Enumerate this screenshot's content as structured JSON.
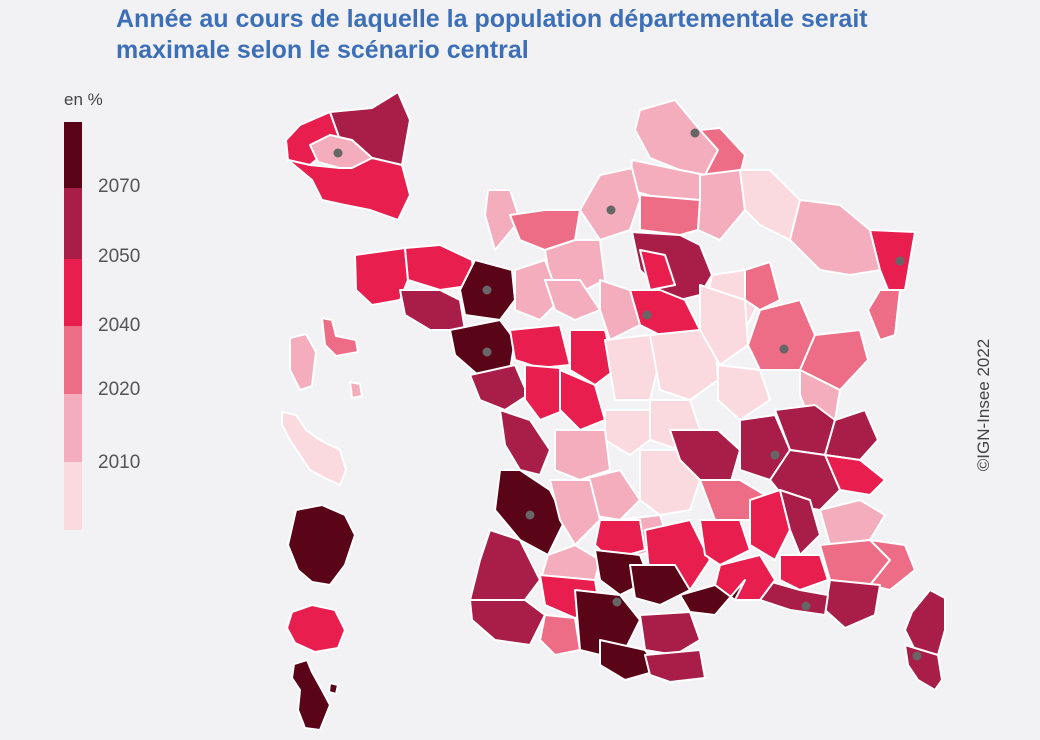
{
  "title": {
    "line1": "Année au cours de laquelle la population départementale serait",
    "line2": "maximale selon le scénario central"
  },
  "legend": {
    "unit": "en %",
    "classes": [
      {
        "color": "#5a0418"
      },
      {
        "color": "#a81e48"
      },
      {
        "color": "#e81f4e"
      },
      {
        "color": "#ee6d86"
      },
      {
        "color": "#f4adbd"
      },
      {
        "color": "#fad9df"
      }
    ],
    "labels": [
      "2070",
      "2050",
      "2040",
      "2020",
      "2010"
    ]
  },
  "copyright": "©IGN-Insee 2022",
  "regions": [
    {
      "id": "guadeloupe-west",
      "class": 3
    },
    {
      "id": "guadeloupe-east",
      "class": 4
    },
    {
      "id": "martinique",
      "class": 5
    },
    {
      "id": "guyane",
      "class": 0
    },
    {
      "id": "reunion",
      "class": 2
    },
    {
      "id": "mayotte",
      "class": 0
    },
    {
      "id": "idf-inset-outer-west",
      "class": 2
    },
    {
      "id": "idf-inset-outer-north",
      "class": 1
    },
    {
      "id": "idf-inset-outer-south",
      "class": 2
    },
    {
      "id": "idf-inset-paris",
      "class": 4
    },
    {
      "id": "corse-nord",
      "class": 1
    },
    {
      "id": "corse-sud",
      "class": 1
    }
  ]
}
